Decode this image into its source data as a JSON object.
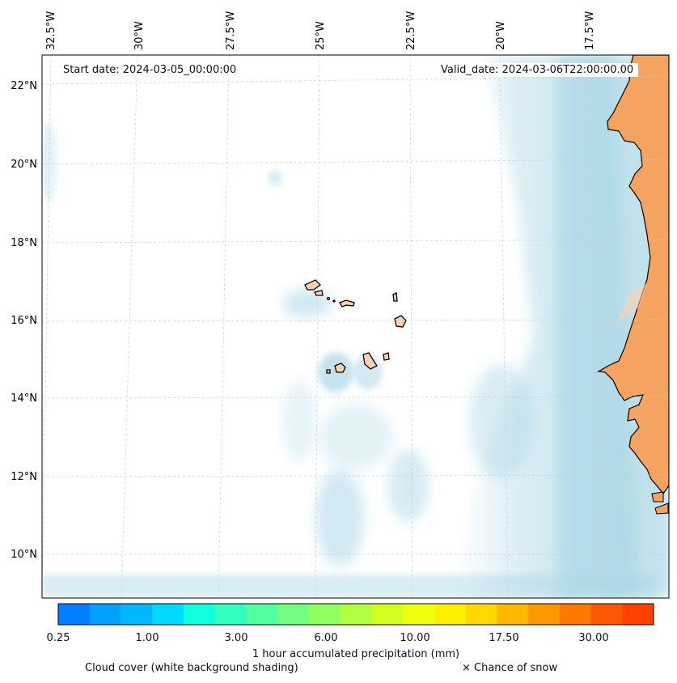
{
  "map": {
    "lon_labels": [
      "32.5°W",
      "30°W",
      "27.5°W",
      "25°W",
      "22.5°W",
      "20°W",
      "17.5°W"
    ],
    "lat_labels": [
      "22°N",
      "20°N",
      "18°N",
      "16°N",
      "14°N",
      "12°N",
      "10°N"
    ],
    "start_date": "Start date: 2024-03-05_00:00:00",
    "valid_date": "Valid_date: 2024-03-06T22:00:00.00",
    "colors": {
      "land": "#f4a460",
      "sea_cloud": "#add8e6",
      "coast": "#000000",
      "grid": "#cccccc"
    }
  },
  "colorbar": {
    "title": "1 hour accumulated precipitation (mm)",
    "tick_labels": [
      "0.25",
      "1.00",
      "3.00",
      "6.00",
      "10.00",
      "17.50",
      "30.00"
    ],
    "colors": [
      "#0080ff",
      "#00a0ff",
      "#00b8ff",
      "#00d8ff",
      "#10ffe0",
      "#30ffc0",
      "#50ffa0",
      "#70ff80",
      "#90ff60",
      "#b0ff40",
      "#d0ff20",
      "#f0ff10",
      "#fff000",
      "#ffd800",
      "#ffb800",
      "#ff9800",
      "#ff7800",
      "#ff5800",
      "#ff4000"
    ]
  },
  "legend": {
    "cloud_cover": "Cloud cover (white background shading)",
    "snow": "× Chance of snow"
  }
}
